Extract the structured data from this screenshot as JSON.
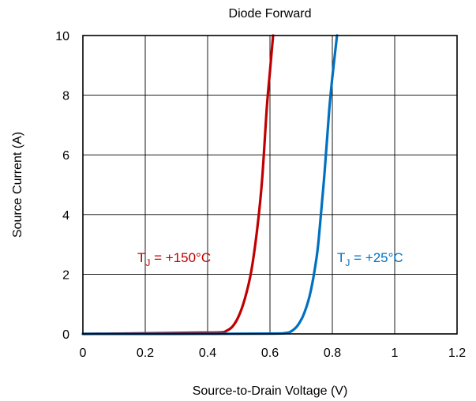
{
  "chart_data": {
    "type": "line",
    "title": "Diode Forward",
    "xlabel": "Source-to-Drain Voltage (V)",
    "ylabel": "Source Current (A)",
    "xlim": [
      0,
      1.2
    ],
    "ylim": [
      0,
      10
    ],
    "x_ticks": [
      0,
      0.2,
      0.4,
      0.6,
      0.8,
      1,
      1.2
    ],
    "x_tick_labels": [
      "0",
      "0.2",
      "0.4",
      "0.6",
      "0.8",
      "1",
      "1.2"
    ],
    "y_ticks": [
      0,
      2,
      4,
      6,
      8,
      10
    ],
    "y_tick_labels": [
      "0",
      "2",
      "4",
      "6",
      "8",
      "10"
    ],
    "grid": true,
    "series": [
      {
        "label_main": "T",
        "label_sub": "J",
        "label_rest": " = +150°C",
        "color": "#c00000",
        "points": [
          [
            0,
            0.0
          ],
          [
            0.2,
            0.02
          ],
          [
            0.35,
            0.04
          ],
          [
            0.44,
            0.05
          ],
          [
            0.46,
            0.1
          ],
          [
            0.48,
            0.25
          ],
          [
            0.5,
            0.6
          ],
          [
            0.52,
            1.2
          ],
          [
            0.54,
            2.1
          ],
          [
            0.56,
            3.6
          ],
          [
            0.575,
            5.2
          ],
          [
            0.59,
            7.6
          ],
          [
            0.6,
            8.8
          ],
          [
            0.61,
            10.0
          ]
        ]
      },
      {
        "label_main": "T",
        "label_sub": "J",
        "label_rest": " = +25°C",
        "color": "#0070c0",
        "points": [
          [
            0,
            0.0
          ],
          [
            0.3,
            0.0
          ],
          [
            0.6,
            0.01
          ],
          [
            0.65,
            0.03
          ],
          [
            0.67,
            0.1
          ],
          [
            0.69,
            0.3
          ],
          [
            0.71,
            0.7
          ],
          [
            0.73,
            1.4
          ],
          [
            0.75,
            2.6
          ],
          [
            0.76,
            3.6
          ],
          [
            0.775,
            5.4
          ],
          [
            0.79,
            7.5
          ],
          [
            0.8,
            8.6
          ],
          [
            0.815,
            10.0
          ]
        ]
      }
    ]
  }
}
